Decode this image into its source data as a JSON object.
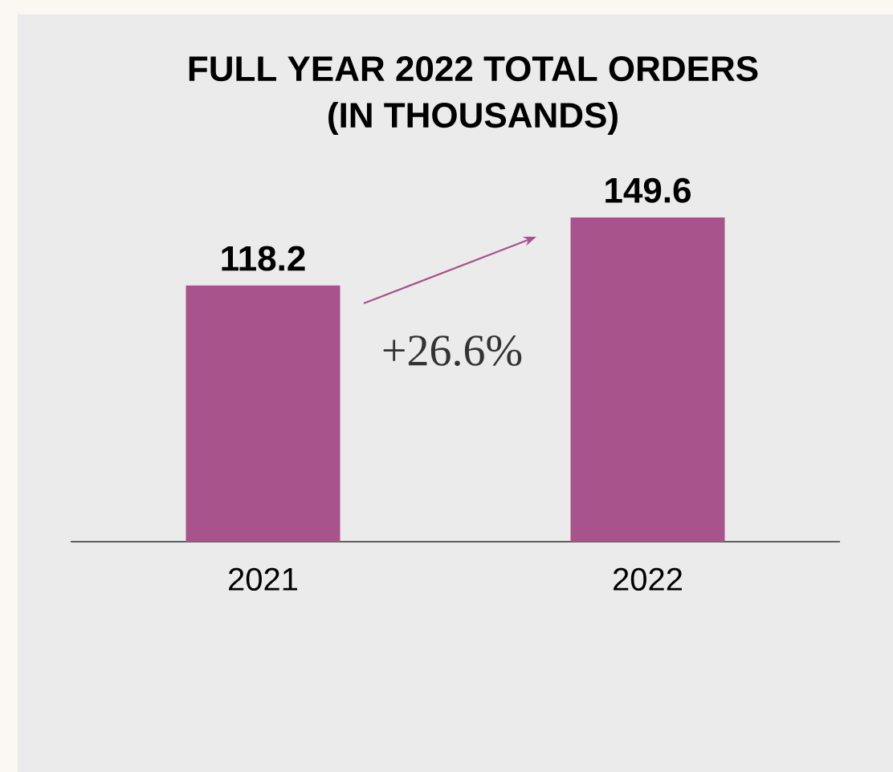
{
  "chart_data": {
    "type": "bar",
    "title": "FULL YEAR 2022 TOTAL ORDERS\n(IN THOUSANDS)",
    "categories": [
      "2021",
      "2022"
    ],
    "values": [
      118.2,
      149.6
    ],
    "color": "#a8538c",
    "data_labels": true,
    "annotations": [
      "+26.6%"
    ]
  }
}
